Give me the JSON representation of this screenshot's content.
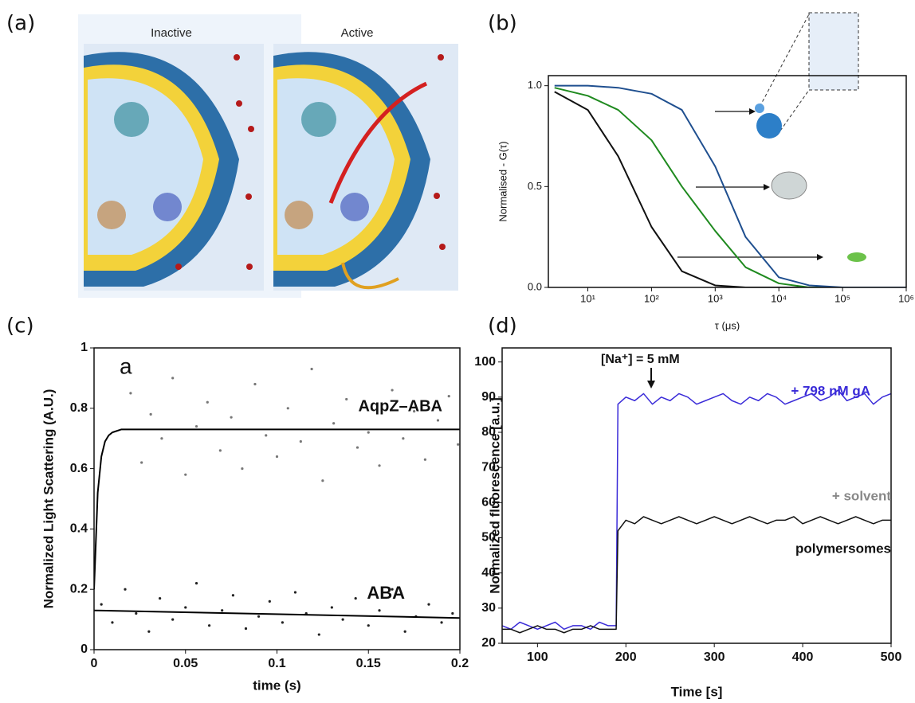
{
  "panel_labels": [
    "(a)",
    "(b)",
    "(c)",
    "(d)"
  ],
  "illustration": {
    "labels": [
      "Inactive",
      "Active"
    ]
  },
  "chart_data": [
    {
      "type": "line",
      "xscale": "log",
      "xlim": [
        2.4,
        1000000
      ],
      "ylim": [
        0,
        1.05
      ],
      "xticks": [
        {
          "value": 10,
          "label": "10¹"
        },
        {
          "value": 100,
          "label": "10²"
        },
        {
          "value": 1000,
          "label": "10³"
        },
        {
          "value": 10000,
          "label": "10⁴"
        },
        {
          "value": 100000,
          "label": "10⁵"
        },
        {
          "value": 1000000,
          "label": "10⁶"
        }
      ],
      "yticks": [
        {
          "value": 0,
          "label": "0.0"
        },
        {
          "value": 0.5,
          "label": "0.5"
        },
        {
          "value": 1,
          "label": "1.0"
        }
      ],
      "xlabel": "τ (μs)",
      "ylabel": "Normalised - G(τ)",
      "x": [
        3,
        10,
        30,
        100,
        300,
        1000,
        3000,
        10000,
        30000,
        100000,
        1000000
      ],
      "series": [
        {
          "color": "#111111",
          "values": [
            0.97,
            0.88,
            0.65,
            0.3,
            0.08,
            0.01,
            0,
            0,
            0,
            0,
            0
          ]
        },
        {
          "color": "#1f8a1f",
          "values": [
            0.99,
            0.95,
            0.88,
            0.73,
            0.5,
            0.28,
            0.1,
            0.02,
            0,
            0,
            0
          ]
        },
        {
          "color": "#1f4f8f",
          "values": [
            1,
            1,
            0.99,
            0.96,
            0.88,
            0.6,
            0.25,
            0.05,
            0.01,
            0,
            0
          ]
        }
      ]
    },
    {
      "type": "scatter",
      "xlim": [
        0,
        0.2
      ],
      "ylim": [
        0,
        1
      ],
      "xticks": [
        0,
        0.05,
        0.1,
        0.15,
        0.2
      ],
      "yticks": [
        0,
        0.2,
        0.4,
        0.6,
        0.8,
        1
      ],
      "xlabel": "time (s)",
      "ylabel": "Normalized Light Scattering (A.U.)",
      "annotations": [
        "a",
        "AqpZ–ABA",
        "ABA"
      ],
      "series": [
        {
          "style": "points",
          "color": "#777777",
          "x": [
            0.02,
            0.026,
            0.031,
            0.037,
            0.043,
            0.05,
            0.056,
            0.062,
            0.069,
            0.075,
            0.081,
            0.088,
            0.094,
            0.1,
            0.106,
            0.113,
            0.119,
            0.125,
            0.131,
            0.138,
            0.144,
            0.15,
            0.156,
            0.163,
            0.169,
            0.175,
            0.181,
            0.188,
            0.194,
            0.199
          ],
          "values": [
            0.85,
            0.62,
            0.78,
            0.7,
            0.9,
            0.58,
            0.74,
            0.82,
            0.66,
            0.77,
            0.6,
            0.88,
            0.71,
            0.64,
            0.8,
            0.69,
            0.93,
            0.56,
            0.75,
            0.83,
            0.67,
            0.72,
            0.61,
            0.86,
            0.7,
            0.79,
            0.63,
            0.76,
            0.84,
            0.68
          ]
        },
        {
          "style": "points",
          "color": "#222222",
          "x": [
            0.004,
            0.01,
            0.017,
            0.023,
            0.03,
            0.036,
            0.043,
            0.05,
            0.056,
            0.063,
            0.07,
            0.076,
            0.083,
            0.09,
            0.096,
            0.103,
            0.11,
            0.116,
            0.123,
            0.13,
            0.136,
            0.143,
            0.15,
            0.156,
            0.163,
            0.17,
            0.176,
            0.183,
            0.19,
            0.196
          ],
          "values": [
            0.15,
            0.09,
            0.2,
            0.12,
            0.06,
            0.17,
            0.1,
            0.14,
            0.22,
            0.08,
            0.13,
            0.18,
            0.07,
            0.11,
            0.16,
            0.09,
            0.19,
            0.12,
            0.05,
            0.14,
            0.1,
            0.17,
            0.08,
            0.13,
            0.2,
            0.06,
            0.11,
            0.15,
            0.09,
            0.12
          ]
        },
        {
          "style": "line",
          "color": "#000000",
          "x": [
            0,
            0.002,
            0.004,
            0.006,
            0.008,
            0.01,
            0.015,
            0.02,
            0.1,
            0.2
          ],
          "values": [
            0.2,
            0.52,
            0.64,
            0.69,
            0.71,
            0.72,
            0.73,
            0.73,
            0.73,
            0.73
          ]
        },
        {
          "style": "line",
          "color": "#000000",
          "x": [
            0,
            0.2
          ],
          "values": [
            0.13,
            0.105
          ]
        }
      ]
    },
    {
      "type": "line",
      "xlim": [
        60,
        500
      ],
      "ylim": [
        20,
        104
      ],
      "xticks": [
        100,
        200,
        300,
        400,
        500
      ],
      "yticks": [
        20,
        30,
        40,
        50,
        60,
        70,
        80,
        90,
        100
      ],
      "xlabel": "Time [s]",
      "ylabel": "Normalized fluorescence [a.u.]",
      "annotations": [
        "[Na⁺] = 5 mM",
        "+ 798 nM gA",
        "+ solvent",
        "polymersomes"
      ],
      "x": [
        60,
        70,
        80,
        90,
        100,
        110,
        120,
        130,
        140,
        150,
        160,
        170,
        180,
        189,
        191,
        200,
        210,
        220,
        230,
        240,
        250,
        260,
        270,
        280,
        290,
        300,
        310,
        320,
        330,
        340,
        350,
        360,
        370,
        380,
        390,
        400,
        410,
        420,
        430,
        440,
        450,
        460,
        470,
        480,
        490,
        500
      ],
      "series": [
        {
          "color": "#3a2bd8",
          "values": [
            25,
            24,
            26,
            25,
            24,
            25,
            26,
            24,
            25,
            25,
            24,
            26,
            25,
            25,
            88,
            90,
            89,
            91,
            88,
            90,
            89,
            91,
            90,
            88,
            89,
            90,
            91,
            89,
            88,
            90,
            89,
            91,
            90,
            88,
            89,
            90,
            91,
            89,
            90,
            92,
            89,
            90,
            91,
            88,
            90,
            91
          ]
        },
        {
          "color": "#111111",
          "values": [
            24,
            24,
            23,
            24,
            25,
            24,
            24,
            23,
            24,
            24,
            25,
            24,
            24,
            24,
            52,
            55,
            54,
            56,
            55,
            54,
            55,
            56,
            55,
            54,
            55,
            56,
            55,
            54,
            55,
            56,
            55,
            54,
            55,
            55,
            56,
            54,
            55,
            56,
            55,
            54,
            55,
            56,
            55,
            54,
            55,
            55
          ]
        }
      ]
    }
  ]
}
